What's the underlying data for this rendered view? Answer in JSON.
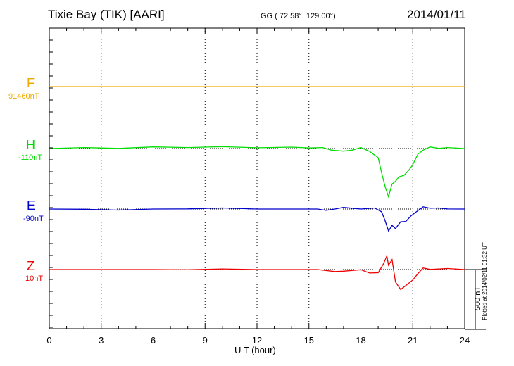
{
  "header": {
    "station": "Tixie Bay (TIK)  [AARI]",
    "coords": "GG ( 72.58°, 129.00°)",
    "date": "2014/01/11"
  },
  "footer": {
    "plotted": "Plotted at 2014/02/11 01:32 UT"
  },
  "chart_data": {
    "type": "line",
    "title": "Tixie Bay (TIK)  [AARI]",
    "xlabel": "U T (hour)",
    "xlim": [
      0,
      24
    ],
    "xticks": [
      "0",
      "3",
      "6",
      "9",
      "12",
      "15",
      "18",
      "21",
      "24"
    ],
    "scale_bar": {
      "label": "500 nT",
      "value_nT": 500
    },
    "grid": "vertical dotted every 3 hours",
    "series": [
      {
        "name": "F",
        "baseline_label": "91460nT",
        "color": "#f0a800",
        "x": [
          0,
          3,
          6,
          9,
          12,
          15,
          18,
          21,
          24
        ],
        "y": [
          0,
          0,
          0,
          0,
          0,
          0,
          0,
          0,
          0
        ]
      },
      {
        "name": "H",
        "baseline_label": "-110nT",
        "color": "#00dd00",
        "x": [
          0,
          2,
          4,
          6,
          8,
          10,
          12,
          14,
          15,
          15.8,
          16.3,
          17,
          17.5,
          18,
          18.5,
          19,
          19.2,
          19.4,
          19.6,
          19.8,
          20,
          20.2,
          20.5,
          20.8,
          21,
          21.3,
          21.6,
          22,
          22.5,
          23,
          24
        ],
        "y": [
          0,
          5,
          5,
          10,
          12,
          12,
          10,
          8,
          8,
          5,
          -10,
          -25,
          -10,
          5,
          -20,
          -80,
          -200,
          -320,
          -400,
          -300,
          -270,
          -240,
          -220,
          -180,
          -130,
          -50,
          -10,
          10,
          5,
          5,
          0
        ]
      },
      {
        "name": "E",
        "baseline_label": "-90nT",
        "color": "#0000cc",
        "x": [
          0,
          2,
          4,
          6,
          8,
          10,
          12,
          14,
          15.5,
          16,
          16.5,
          17,
          18,
          18.8,
          19.2,
          19.4,
          19.6,
          19.8,
          20,
          20.3,
          20.6,
          20.9,
          21.2,
          21.6,
          22,
          22.5,
          23,
          24
        ],
        "y": [
          0,
          -5,
          -5,
          0,
          5,
          5,
          0,
          0,
          0,
          -15,
          0,
          10,
          0,
          5,
          -20,
          -100,
          -180,
          -140,
          -160,
          -110,
          -100,
          -60,
          -20,
          15,
          10,
          5,
          5,
          0
        ]
      },
      {
        "name": "Z",
        "baseline_label": "10nT",
        "color": "#ee0000",
        "x": [
          0,
          2,
          4,
          6,
          8,
          10,
          12,
          14,
          15.5,
          16.5,
          17,
          18,
          18.5,
          19,
          19.3,
          19.5,
          19.6,
          19.8,
          20,
          20.3,
          20.6,
          21,
          21.3,
          21.6,
          22,
          23,
          24
        ],
        "y": [
          0,
          0,
          0,
          0,
          2,
          2,
          0,
          0,
          0,
          -20,
          -10,
          -5,
          -25,
          -30,
          50,
          110,
          40,
          80,
          -100,
          -170,
          -130,
          -90,
          -30,
          10,
          5,
          5,
          0
        ]
      }
    ]
  }
}
